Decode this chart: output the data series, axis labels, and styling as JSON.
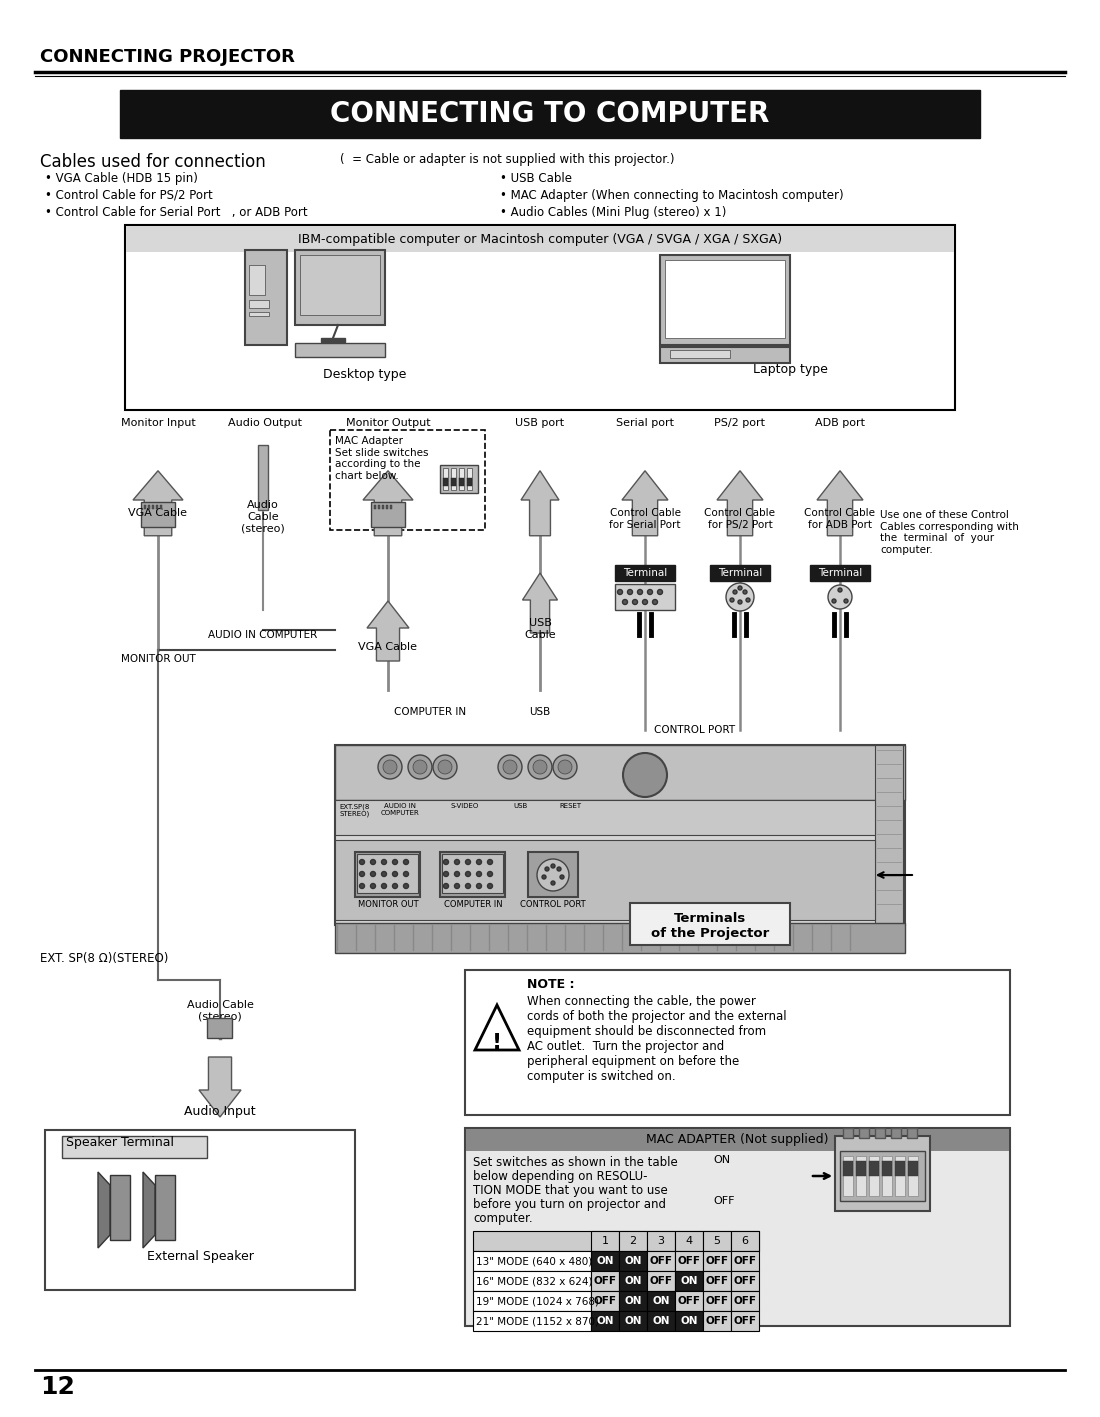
{
  "page_title": "CONNECTING PROJECTOR",
  "section_title": "CONNECTING TO COMPUTER",
  "cables_header": "Cables used for connection",
  "cables_note": "(  = Cable or adapter is not supplied with this projector.)",
  "cables_left": [
    "• VGA Cable (HDB 15 pin)",
    "• Control Cable for PS/2 Port",
    "• Control Cable for Serial Port   , or ADB Port"
  ],
  "cables_right": [
    "• USB Cable",
    "• MAC Adapter (When connecting to Macintosh computer)",
    "• Audio Cables (Mini Plug (stereo) x 1)"
  ],
  "computer_box_label": "IBM-compatible computer or Macintosh computer (VGA / SVGA / XGA / SXGA)",
  "desktop_label": "Desktop type",
  "laptop_label": "Laptop type",
  "port_labels_row": [
    [
      "Monitor Input",
      148
    ],
    [
      "Audio Output",
      255
    ],
    [
      "Monitor Output",
      378
    ],
    [
      "USB port",
      530
    ],
    [
      "Serial port",
      635
    ],
    [
      "PS/2 port",
      730
    ],
    [
      "ADB port",
      830
    ]
  ],
  "mac_adapter_text": "MAC Adapter\nSet slide switches\naccording to the\nchart below.",
  "vga_cable_label": "VGA Cable",
  "audio_cable_label1": "Audio\nCable\n(stereo)",
  "vga_cable_label2": "VGA Cable",
  "usb_cable_label": "USB\nCable",
  "control_cable_labels": [
    [
      "Control Cable\nfor Serial Port",
      635
    ],
    [
      "Control Cable\nfor PS/2 Port",
      730
    ],
    [
      "Control Cable\nfor ADB Port",
      830
    ]
  ],
  "terminal_labels": [
    "Terminal",
    "Terminal",
    "Terminal"
  ],
  "monitor_out_label": "MONITOR OUT",
  "audio_in_label": "AUDIO IN COMPUTER",
  "computer_in_label": "COMPUTER IN",
  "usb_label": "USB",
  "control_port_label": "CONTROL PORT",
  "projector_terminal_label": "Terminals\nof the Projector",
  "ext_sp_label": "EXT. SP(8 Ω)(STEREO)",
  "audio_cable_label2": "Audio Cable\n(stereo)",
  "audio_input_label": "Audio Input",
  "speaker_terminal_label": "Speaker Terminal",
  "ext_speaker_label": "External Speaker",
  "use_one_text": "Use one of these Control\nCables corresponding with\nthe  terminal  of  your\ncomputer.",
  "note_title": "NOTE :",
  "note_text": "When connecting the cable, the power\ncords of both the projector and the external\nequipment should be disconnected from\nAC outlet.  Turn the projector and\nperipheral equipment on before the\ncomputer is switched on.",
  "mac_adapter_box_title": "MAC ADAPTER (Not supplied)",
  "mac_adapter_box_text": "Set switches as shown in the table",
  "mac_adapter_box_text2": "below depending on RESOLU-",
  "mac_adapter_box_text3": "TION MODE that you want to use",
  "mac_adapter_box_text4": "before you turn on projector and",
  "mac_adapter_box_text5": "computer.",
  "mac_on_label": "ON",
  "mac_off_label": "OFF",
  "table_headers": [
    "",
    "1",
    "2",
    "3",
    "4",
    "5",
    "6"
  ],
  "table_rows": [
    [
      "13\" MODE (640 x 480)",
      "ON",
      "ON",
      "OFF",
      "OFF",
      "OFF",
      "OFF"
    ],
    [
      "16\" MODE (832 x 624)",
      "OFF",
      "ON",
      "OFF",
      "ON",
      "OFF",
      "OFF"
    ],
    [
      "19\" MODE (1024 x 768)",
      "OFF",
      "ON",
      "ON",
      "OFF",
      "OFF",
      "OFF"
    ],
    [
      "21\" MODE (1152 x 870)",
      "ON",
      "ON",
      "ON",
      "ON",
      "OFF",
      "OFF"
    ]
  ],
  "page_number": "12",
  "bg_white": "#ffffff",
  "black": "#000000",
  "dark_gray": "#444444",
  "mid_gray": "#888888",
  "light_gray": "#bbbbbb",
  "very_light_gray": "#d8d8d8",
  "header_bg": "#111111",
  "header_fg": "#ffffff",
  "terminal_bg": "#1a1a1a",
  "terminal_fg": "#ffffff",
  "on_bg": "#1a1a1a",
  "on_fg": "#ffffff",
  "off_bg": "#d0d0d0",
  "off_fg": "#000000",
  "table_header_bg": "#cccccc"
}
